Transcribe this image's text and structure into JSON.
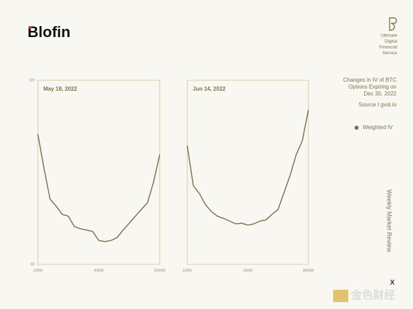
{
  "brand": "Blofin",
  "tagline": [
    "Ultimate",
    "Digital",
    "Financial",
    "Service"
  ],
  "description": [
    "Changes in IV of BTC",
    "Options Expiring on",
    "Dec 30, 2022"
  ],
  "source": "Source I gvol.io",
  "side_title": "Weekly Market Review",
  "corner_mark": "X",
  "watermark": "金色财经",
  "chart_data": [
    {
      "type": "line",
      "title": "May 18, 2022",
      "categories": [
        "10000",
        null,
        null,
        null,
        null,
        null,
        null,
        null,
        null,
        null,
        "40000",
        null,
        null,
        null,
        null,
        null,
        null,
        null,
        null,
        null,
        "250000"
      ],
      "series": [
        {
          "name": "Weighted IV",
          "color": "#77754f",
          "values": [
            102.5,
            91.3,
            81.3,
            79,
            76.3,
            75.7,
            72.3,
            71.6,
            71.2,
            70.7,
            67.8,
            67.4,
            67.8,
            68.7,
            71.2,
            73.4,
            75.7,
            77.9,
            80.1,
            86.9,
            95.8
          ]
        }
      ],
      "ylim": [
        60,
        120
      ],
      "yticks": [
        60,
        120
      ]
    },
    {
      "type": "line",
      "title": "Jun 14, 2022",
      "categories": [
        "10000",
        null,
        null,
        null,
        null,
        null,
        null,
        null,
        null,
        null,
        "34000",
        null,
        null,
        null,
        null,
        null,
        null,
        null,
        null,
        null,
        "300000"
      ],
      "series": [
        {
          "color": "#77754f",
          "values": [
            98.7,
            85.7,
            83.1,
            79.5,
            77.2,
            75.7,
            75,
            74.1,
            73.2,
            73.4,
            72.8,
            73.2,
            74.1,
            74.5,
            76.3,
            77.9,
            83.5,
            89.1,
            95.8,
            100.3,
            110.4
          ]
        }
      ],
      "ylim": [
        60,
        120
      ]
    }
  ]
}
